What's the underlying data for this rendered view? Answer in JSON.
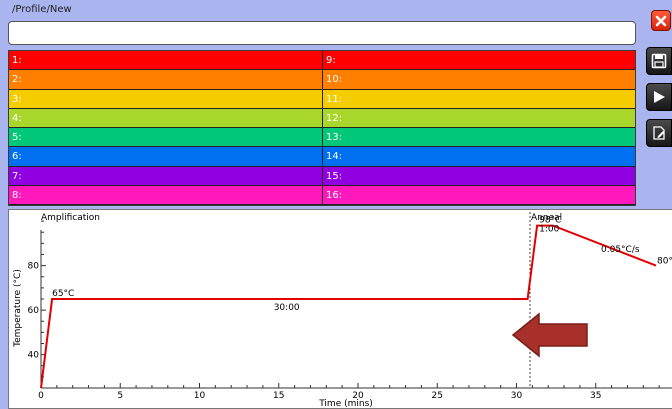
{
  "header": {
    "path": "/Profile/New"
  },
  "profile_name": {
    "value": "",
    "placeholder": ""
  },
  "tubes": [
    {
      "label": "1:",
      "color": "#ff0000"
    },
    {
      "label": "2:",
      "color": "#ff7f00"
    },
    {
      "label": "3:",
      "color": "#f5cc00"
    },
    {
      "label": "4:",
      "color": "#a8d62a"
    },
    {
      "label": "5:",
      "color": "#00c878"
    },
    {
      "label": "6:",
      "color": "#0070f0"
    },
    {
      "label": "7:",
      "color": "#9000e0"
    },
    {
      "label": "8:",
      "color": "#ff18bb"
    },
    {
      "label": "9:",
      "color": "#ff0000"
    },
    {
      "label": "10:",
      "color": "#ff7f00"
    },
    {
      "label": "11:",
      "color": "#f5cc00"
    },
    {
      "label": "12:",
      "color": "#a8d62a"
    },
    {
      "label": "13:",
      "color": "#00c878"
    },
    {
      "label": "14:",
      "color": "#0070f0"
    },
    {
      "label": "15:",
      "color": "#9000e0"
    },
    {
      "label": "16:",
      "color": "#ff18bb"
    }
  ],
  "toolbar": {
    "close_icon": "close-icon",
    "save_icon": "floppy-disk-icon",
    "run_icon": "play-icon",
    "edit_icon": "edit-document-icon"
  },
  "plot": {
    "stage1_label": "Amplification",
    "stage2_label": "Anneal",
    "hold1_temp": "65°C",
    "hold1_time": "30:00",
    "hold2_temp": "98°C",
    "hold2_time": "1:00",
    "ramp_rate": "0.05°C/s",
    "end_temp": "80°C",
    "xlabel": "Time (mins)",
    "ylabel": "Temperature (°C)",
    "x_ticks": [
      "0",
      "5",
      "10",
      "15",
      "20",
      "25",
      "30",
      "35"
    ],
    "y_ticks": [
      "40",
      "60",
      "80"
    ],
    "line_color": "#e00000",
    "arrow_color": "#a8302a",
    "arrow_direction": "left"
  },
  "chart_data": {
    "type": "line",
    "title": "",
    "xlabel": "Time (mins)",
    "ylabel": "Temperature (°C)",
    "xlim": [
      0,
      40
    ],
    "ylim": [
      25,
      105
    ],
    "series": [
      {
        "x": [
          0,
          0.7,
          30.7,
          31.3,
          32.3,
          38.8
        ],
        "y": [
          25,
          65,
          65,
          98,
          98,
          80
        ]
      }
    ]
  }
}
